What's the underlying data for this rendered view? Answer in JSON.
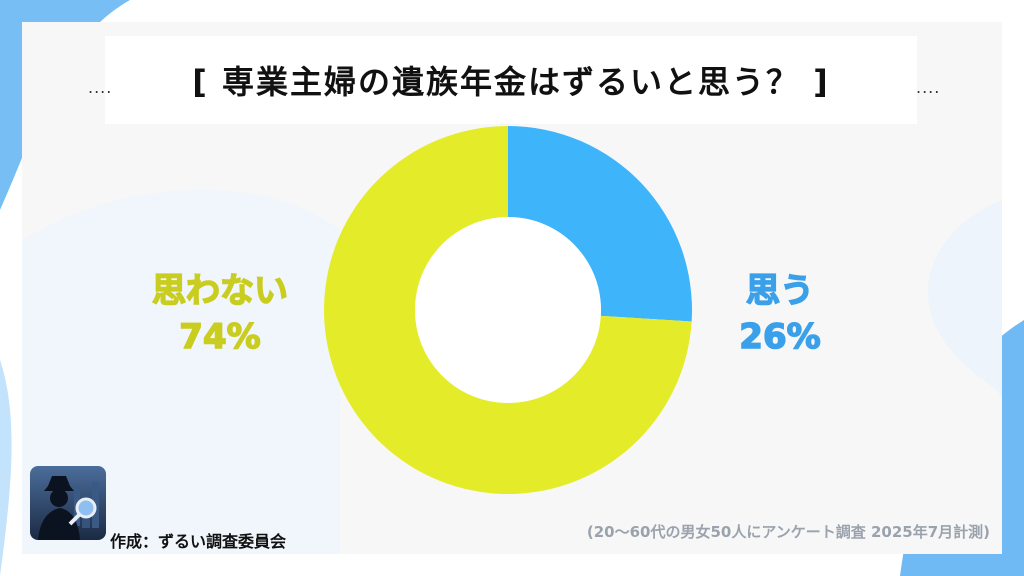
{
  "colors": {
    "accent_blue": "#3aa0ea",
    "accent_yellow": "#e4ec2a",
    "label_yellow": "#c9cd1f",
    "background_blob": "#4ea8f0"
  },
  "decor": {
    "dots_left": "....",
    "dots_right": "...."
  },
  "chart_data": {
    "type": "pie",
    "title": "[ 専業主婦の遺族年金はずるいと思う？ ]",
    "donut": true,
    "slices": [
      {
        "label": "思う",
        "value": 26,
        "display": "26%",
        "color": "#3eb4fb"
      },
      {
        "label": "思わない",
        "value": 74,
        "display": "74%",
        "color": "#e4ec2a"
      }
    ]
  },
  "footer": {
    "author": "作成：ずるい調査委員会",
    "note": "(20〜60代の男女50人にアンケート調査 2025年7月計測)"
  },
  "logo": {
    "icon": "detective-magnifier-icon"
  }
}
